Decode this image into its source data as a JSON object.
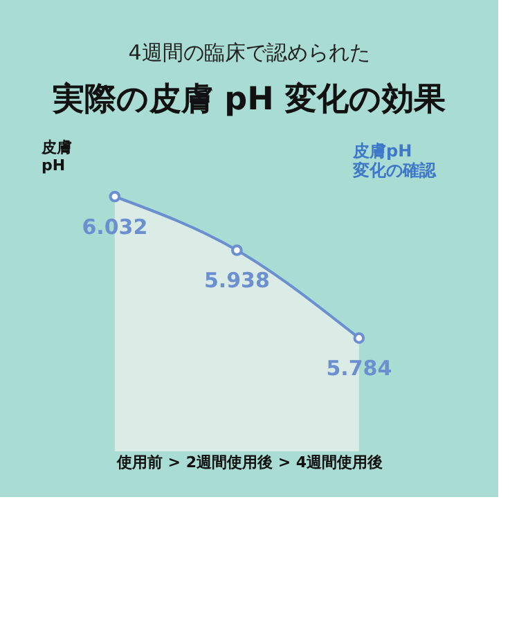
{
  "chart_data": {
    "type": "area",
    "title": "実際の皮膚 pH 変化の効果",
    "subtitle": "4週間の臨床で認められた",
    "ylabel": "皮膚\npH",
    "xlabel": "使用前  >  2週間使用後  >  4週間使用後",
    "categories": [
      null,
      null,
      null
    ],
    "series": [
      {
        "color": "#6b8fcf",
        "values": [
          6.032,
          5.938,
          5.784
        ]
      }
    ],
    "data_labels": true,
    "marker": "circle",
    "line_style": "solid",
    "grid": false,
    "tick_labels": false,
    "annotations": [
      "皮膚pH\n変化の確認"
    ]
  }
}
